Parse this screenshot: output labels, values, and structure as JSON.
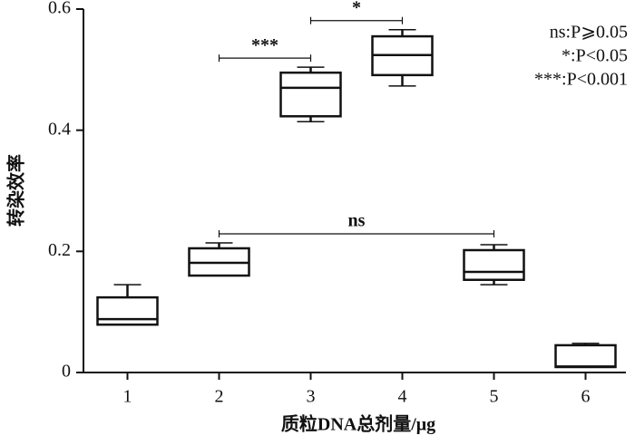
{
  "chart_data": {
    "type": "box",
    "y_label": "转染效率",
    "x_label": "质粒DNA总剂量/μg",
    "categories": [
      "1",
      "2",
      "3",
      "4",
      "5",
      "6"
    ],
    "boxes": [
      {
        "min": 0.079,
        "q1": 0.079,
        "median": 0.088,
        "q3": 0.124,
        "max": 0.145
      },
      {
        "min": 0.16,
        "q1": 0.16,
        "median": 0.181,
        "q3": 0.205,
        "max": 0.214
      },
      {
        "min": 0.414,
        "q1": 0.423,
        "median": 0.47,
        "q3": 0.495,
        "max": 0.504
      },
      {
        "min": 0.473,
        "q1": 0.491,
        "median": 0.524,
        "q3": 0.555,
        "max": 0.566
      },
      {
        "min": 0.145,
        "q1": 0.153,
        "median": 0.166,
        "q3": 0.202,
        "max": 0.211
      },
      {
        "min": 0.009,
        "q1": 0.009,
        "median": 0.01,
        "q3": 0.045,
        "max": 0.048
      }
    ],
    "color": "#111111",
    "ylim": [
      0,
      0.6
    ],
    "yticks": [
      0,
      0.2,
      0.4,
      0.6
    ],
    "annotations": [
      {
        "label": "***",
        "from": 1,
        "to": 2
      },
      {
        "label": "*",
        "from": 2,
        "to": 3
      },
      {
        "label": "ns",
        "from": 1,
        "to": 4
      }
    ],
    "legend_lines": [
      "ns:P⩾0.05",
      "*:P<0.05",
      "***:P<0.001"
    ]
  }
}
